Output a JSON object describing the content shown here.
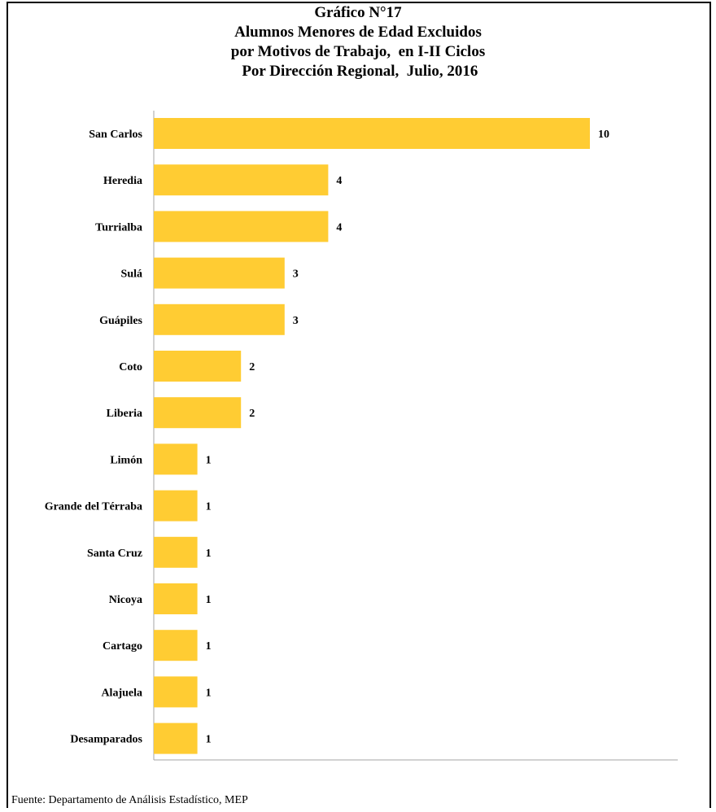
{
  "page": {
    "title_lines": [
      "Gráfico N°17",
      "Alumnos Menores de Edad Excluidos",
      "por Motivos de Trabajo,  en I-II Ciclos",
      " Por Dirección Regional,  Julio, 2016"
    ],
    "source": "Fuente: Departamento de Análisis Estadístico, MEP"
  },
  "chart_data": {
    "type": "bar",
    "orientation": "horizontal",
    "title": "Gráfico N°17 Alumnos Menores de Edad Excluidos por Motivos de Trabajo,  en I-II Ciclos  Por Dirección Regional,  Julio, 2016",
    "categories": [
      "San Carlos",
      "Heredia",
      "Turrialba",
      "Sulá",
      "Guápiles",
      "Coto",
      "Liberia",
      "Limón",
      "Grande del Térraba",
      "Santa Cruz",
      "Nicoya",
      "Cartago",
      "Alajuela",
      "Desamparados"
    ],
    "values": [
      10,
      4,
      4,
      3,
      3,
      2,
      2,
      1,
      1,
      1,
      1,
      1,
      1,
      1
    ],
    "data_labels": [
      "10",
      "4",
      "4",
      "3",
      "3",
      "2",
      "2",
      "1",
      "1",
      "1",
      "1",
      "1",
      "1",
      "1"
    ],
    "xlim": [
      0,
      12
    ],
    "xlabel": "",
    "ylabel": "",
    "bar_color": "#FFCC33",
    "axis_color": "#A6A6A6",
    "grid": false,
    "legend": "none"
  }
}
